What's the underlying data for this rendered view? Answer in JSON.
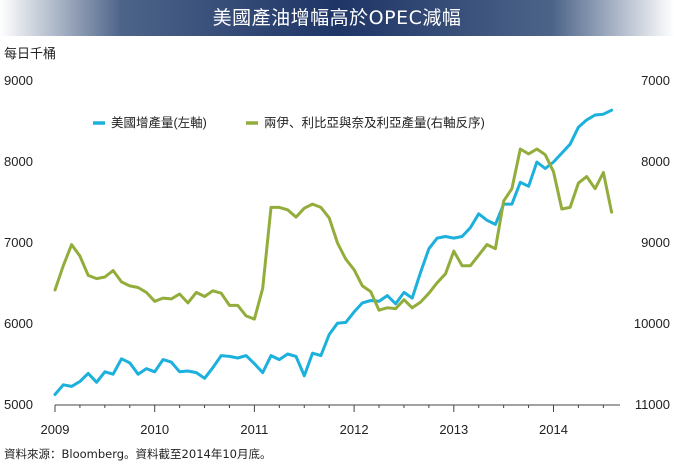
{
  "title": "美國產油增幅高於OPEC減幅",
  "source": "資料來源：Bloomberg。資料截至2014年10月底。",
  "colors": {
    "us": "#1cb0dd",
    "opec": "#93ad3c",
    "title_bg": "#1e3566"
  },
  "chart_data": {
    "type": "line",
    "title": "美國產油增幅高於OPEC減幅",
    "ylabel_left": "每日千桶",
    "x_ticks": [
      "2009",
      "2010",
      "2011",
      "2012",
      "2013",
      "2014"
    ],
    "y_left": {
      "range": [
        5000,
        9000
      ],
      "ticks": [
        "5000",
        "6000",
        "7000",
        "8000",
        "9000"
      ]
    },
    "y_right": {
      "range": [
        11000,
        7000
      ],
      "inverted": true,
      "ticks": [
        "11000",
        "10000",
        "9000",
        "8000",
        "7000"
      ]
    },
    "legend_position": "top",
    "grid": false,
    "series": [
      {
        "name": "美國增產量(左軸)",
        "axis": "left",
        "x": [
          2009.0,
          2009.083,
          2009.167,
          2009.25,
          2009.333,
          2009.417,
          2009.5,
          2009.583,
          2009.667,
          2009.75,
          2009.833,
          2009.917,
          2010.0,
          2010.083,
          2010.167,
          2010.25,
          2010.333,
          2010.417,
          2010.5,
          2010.583,
          2010.667,
          2010.75,
          2010.833,
          2010.917,
          2011.0,
          2011.083,
          2011.167,
          2011.25,
          2011.333,
          2011.417,
          2011.5,
          2011.583,
          2011.667,
          2011.75,
          2011.833,
          2011.917,
          2012.0,
          2012.083,
          2012.167,
          2012.25,
          2012.333,
          2012.417,
          2012.5,
          2012.583,
          2012.667,
          2012.75,
          2012.833,
          2012.917,
          2013.0,
          2013.083,
          2013.167,
          2013.25,
          2013.333,
          2013.417,
          2013.5,
          2013.583,
          2013.667,
          2013.75,
          2013.833,
          2013.917,
          2014.0,
          2014.083,
          2014.167,
          2014.25,
          2014.333,
          2014.417,
          2014.5,
          2014.583,
          2014.667
        ],
        "values": [
          5130,
          5250,
          5230,
          5290,
          5390,
          5280,
          5410,
          5380,
          5570,
          5520,
          5380,
          5450,
          5410,
          5560,
          5530,
          5410,
          5420,
          5400,
          5330,
          5460,
          5610,
          5600,
          5580,
          5610,
          5510,
          5400,
          5610,
          5560,
          5630,
          5600,
          5360,
          5640,
          5610,
          5870,
          6010,
          6020,
          6150,
          6260,
          6290,
          6280,
          6350,
          6250,
          6390,
          6320,
          6640,
          6930,
          7060,
          7080,
          7060,
          7080,
          7190,
          7360,
          7280,
          7230,
          7480,
          7480,
          7750,
          7700,
          8000,
          7920,
          8000,
          8110,
          8220,
          8430,
          8520,
          8580,
          8590,
          8640,
          null
        ]
      },
      {
        "name": "兩伊、利比亞與奈及利亞產量(右軸反序)",
        "axis": "right",
        "x": [
          2009.0,
          2009.083,
          2009.167,
          2009.25,
          2009.333,
          2009.417,
          2009.5,
          2009.583,
          2009.667,
          2009.75,
          2009.833,
          2009.917,
          2010.0,
          2010.083,
          2010.167,
          2010.25,
          2010.333,
          2010.417,
          2010.5,
          2010.583,
          2010.667,
          2010.75,
          2010.833,
          2010.917,
          2011.0,
          2011.083,
          2011.167,
          2011.25,
          2011.333,
          2011.417,
          2011.5,
          2011.583,
          2011.667,
          2011.75,
          2011.833,
          2011.917,
          2012.0,
          2012.083,
          2012.167,
          2012.25,
          2012.333,
          2012.417,
          2012.5,
          2012.583,
          2012.667,
          2012.75,
          2012.833,
          2012.917,
          2013.0,
          2013.083,
          2013.167,
          2013.25,
          2013.333,
          2013.417,
          2013.5,
          2013.583,
          2013.667,
          2013.75,
          2013.833,
          2013.917,
          2014.0,
          2014.083,
          2014.167,
          2014.25,
          2014.333,
          2014.417,
          2014.5,
          2014.583,
          2014.667
        ],
        "values": [
          9580,
          9280,
          9020,
          9160,
          9400,
          9440,
          9420,
          9340,
          9480,
          9530,
          9550,
          9610,
          9720,
          9680,
          9690,
          9630,
          9740,
          9610,
          9660,
          9590,
          9620,
          9770,
          9770,
          9900,
          9940,
          9560,
          8560,
          8560,
          8590,
          8680,
          8570,
          8520,
          8560,
          8690,
          9000,
          9200,
          9330,
          9530,
          9600,
          9830,
          9800,
          9810,
          9700,
          9800,
          9730,
          9620,
          9490,
          9380,
          9100,
          9280,
          9280,
          9150,
          9020,
          9070,
          8480,
          8330,
          7840,
          7900,
          7840,
          7910,
          8120,
          8580,
          8560,
          8260,
          8180,
          8330,
          8130,
          8620,
          null
        ]
      }
    ]
  }
}
